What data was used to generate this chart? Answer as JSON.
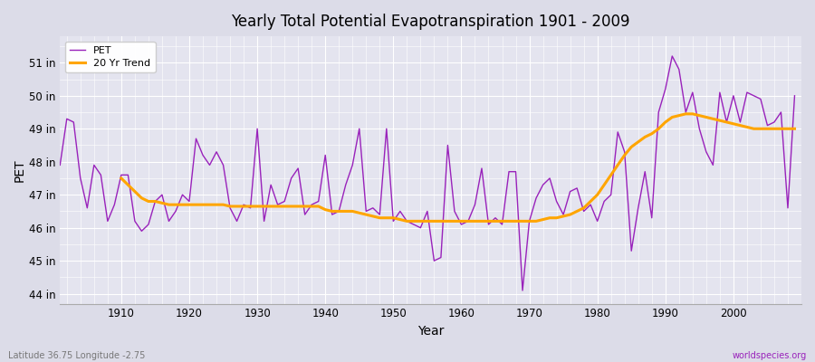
{
  "title": "Yearly Total Potential Evapotranspiration 1901 - 2009",
  "xlabel": "Year",
  "ylabel": "PET",
  "footer_left": "Latitude 36.75 Longitude -2.75",
  "footer_right": "worldspecies.org",
  "bg_color": "#dcdce8",
  "plot_bg_color": "#e4e4ef",
  "pet_color": "#9922bb",
  "trend_color": "#ffa500",
  "ylim": [
    43.7,
    51.8
  ],
  "yticks": [
    44,
    45,
    46,
    47,
    48,
    49,
    50,
    51
  ],
  "ytick_labels": [
    "44 in",
    "45 in",
    "46 in",
    "47 in",
    "48 in",
    "49 in",
    "50 in",
    "51 in"
  ],
  "years": [
    1901,
    1902,
    1903,
    1904,
    1905,
    1906,
    1907,
    1908,
    1909,
    1910,
    1911,
    1912,
    1913,
    1914,
    1915,
    1916,
    1917,
    1918,
    1919,
    1920,
    1921,
    1922,
    1923,
    1924,
    1925,
    1926,
    1927,
    1928,
    1929,
    1930,
    1931,
    1932,
    1933,
    1934,
    1935,
    1936,
    1937,
    1938,
    1939,
    1940,
    1941,
    1942,
    1943,
    1944,
    1945,
    1946,
    1947,
    1948,
    1949,
    1950,
    1951,
    1952,
    1953,
    1954,
    1955,
    1956,
    1957,
    1958,
    1959,
    1960,
    1961,
    1962,
    1963,
    1964,
    1965,
    1966,
    1967,
    1968,
    1969,
    1970,
    1971,
    1972,
    1973,
    1974,
    1975,
    1976,
    1977,
    1978,
    1979,
    1980,
    1981,
    1982,
    1983,
    1984,
    1985,
    1986,
    1987,
    1988,
    1989,
    1990,
    1991,
    1992,
    1993,
    1994,
    1995,
    1996,
    1997,
    1998,
    1999,
    2000,
    2001,
    2002,
    2003,
    2004,
    2005,
    2006,
    2007,
    2008,
    2009
  ],
  "pet_values": [
    47.9,
    49.3,
    49.2,
    47.5,
    46.6,
    47.9,
    47.6,
    46.2,
    46.7,
    47.6,
    47.6,
    46.2,
    45.9,
    46.1,
    46.8,
    47.0,
    46.2,
    46.5,
    47.0,
    46.8,
    48.7,
    48.2,
    47.9,
    48.3,
    47.9,
    46.6,
    46.2,
    46.7,
    46.6,
    49.0,
    46.2,
    47.3,
    46.7,
    46.8,
    47.5,
    47.8,
    46.4,
    46.7,
    46.8,
    48.2,
    46.4,
    46.5,
    47.3,
    47.9,
    49.0,
    46.5,
    46.6,
    46.4,
    49.0,
    46.2,
    46.5,
    46.2,
    46.1,
    46.0,
    46.5,
    45.0,
    45.1,
    48.5,
    46.5,
    46.1,
    46.2,
    46.7,
    47.8,
    46.1,
    46.3,
    46.1,
    47.7,
    47.7,
    44.1,
    46.2,
    46.9,
    47.3,
    47.5,
    46.8,
    46.4,
    47.1,
    47.2,
    46.5,
    46.7,
    46.2,
    46.8,
    47.0,
    48.9,
    48.3,
    45.3,
    46.6,
    47.7,
    46.3,
    49.5,
    50.2,
    51.2,
    50.8,
    49.5,
    50.1,
    49.0,
    48.3,
    47.9,
    50.1,
    49.2,
    50.0,
    49.2,
    50.1,
    50.0,
    49.9,
    49.1,
    49.2,
    49.5,
    46.6,
    50.0
  ],
  "trend_years": [
    1910,
    1911,
    1912,
    1913,
    1914,
    1915,
    1916,
    1917,
    1918,
    1919,
    1920,
    1921,
    1922,
    1923,
    1924,
    1925,
    1926,
    1927,
    1928,
    1929,
    1930,
    1931,
    1932,
    1933,
    1934,
    1935,
    1936,
    1937,
    1938,
    1939,
    1940,
    1941,
    1942,
    1943,
    1944,
    1945,
    1946,
    1947,
    1948,
    1949,
    1950,
    1951,
    1952,
    1953,
    1954,
    1955,
    1956,
    1957,
    1958,
    1959,
    1960,
    1961,
    1962,
    1963,
    1964,
    1965,
    1966,
    1967,
    1968,
    1969,
    1970,
    1971,
    1972,
    1973,
    1974,
    1975,
    1976,
    1977,
    1978,
    1979,
    1980,
    1981,
    1982,
    1983,
    1984,
    1985,
    1986,
    1987,
    1988,
    1989,
    1990,
    1991,
    1992,
    1993,
    1994,
    1995,
    1996,
    1997,
    1998,
    1999,
    2000,
    2001,
    2002,
    2003,
    2004,
    2005,
    2006,
    2007,
    2008,
    2009
  ],
  "trend_values": [
    47.5,
    47.3,
    47.1,
    46.9,
    46.8,
    46.8,
    46.75,
    46.7,
    46.7,
    46.7,
    46.7,
    46.7,
    46.7,
    46.7,
    46.7,
    46.7,
    46.65,
    46.65,
    46.65,
    46.65,
    46.65,
    46.65,
    46.65,
    46.65,
    46.65,
    46.65,
    46.65,
    46.65,
    46.65,
    46.65,
    46.55,
    46.5,
    46.5,
    46.5,
    46.5,
    46.45,
    46.4,
    46.35,
    46.3,
    46.3,
    46.3,
    46.25,
    46.2,
    46.2,
    46.2,
    46.2,
    46.2,
    46.2,
    46.2,
    46.2,
    46.2,
    46.2,
    46.2,
    46.2,
    46.2,
    46.2,
    46.2,
    46.2,
    46.2,
    46.2,
    46.2,
    46.2,
    46.25,
    46.3,
    46.3,
    46.35,
    46.4,
    46.5,
    46.6,
    46.8,
    47.0,
    47.3,
    47.6,
    47.9,
    48.2,
    48.45,
    48.6,
    48.75,
    48.85,
    49.0,
    49.2,
    49.35,
    49.4,
    49.45,
    49.45,
    49.4,
    49.35,
    49.3,
    49.25,
    49.2,
    49.15,
    49.1,
    49.05,
    49.0,
    49.0,
    49.0,
    49.0,
    49.0,
    49.0,
    49.0
  ]
}
